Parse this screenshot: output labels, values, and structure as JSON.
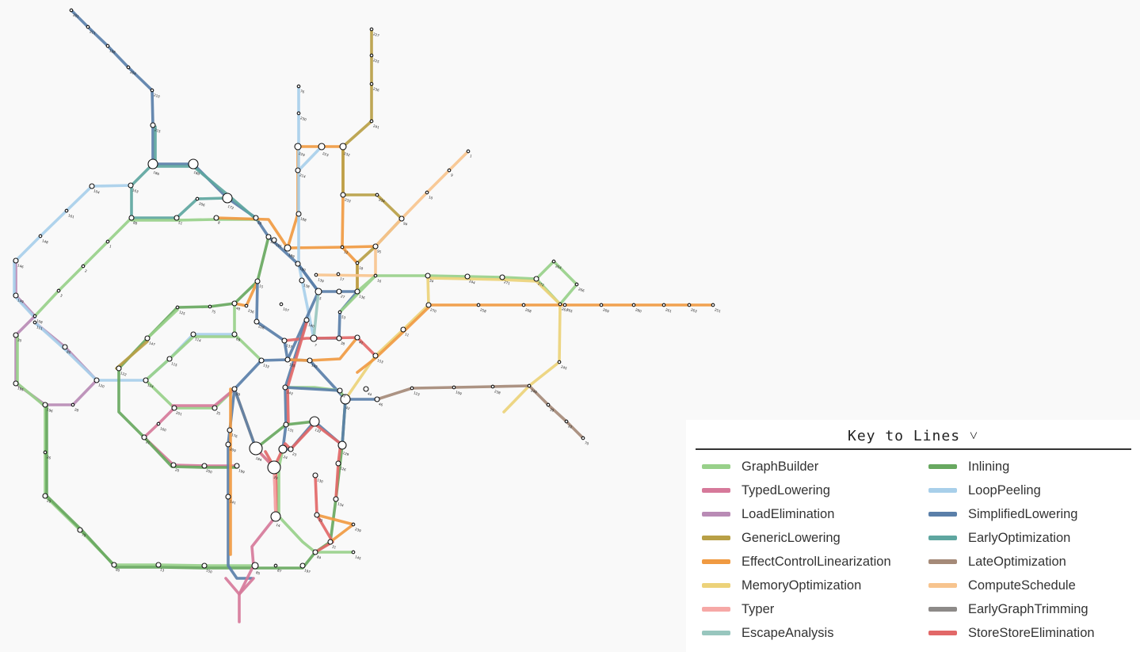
{
  "legend": {
    "title": "Key to Lines ˅",
    "lines": [
      {
        "name": "GraphBuilder",
        "color": "#98d08a"
      },
      {
        "name": "Inlining",
        "color": "#68a860"
      },
      {
        "name": "TypedLowering",
        "color": "#d6799a"
      },
      {
        "name": "LoopPeeling",
        "color": "#a8cfea"
      },
      {
        "name": "LoadElimination",
        "color": "#b98bb5"
      },
      {
        "name": "SimplifiedLowering",
        "color": "#5a7fa9"
      },
      {
        "name": "GenericLowering",
        "color": "#b8a046"
      },
      {
        "name": "EarlyOptimization",
        "color": "#5ea6a0"
      },
      {
        "name": "EffectControlLinearization",
        "color": "#f09a42"
      },
      {
        "name": "LateOptimization",
        "color": "#a58a78"
      },
      {
        "name": "MemoryOptimization",
        "color": "#ecd27a"
      },
      {
        "name": "ComputeSchedule",
        "color": "#f7c48e"
      },
      {
        "name": "Typer",
        "color": "#f6a8a6"
      },
      {
        "name": "EarlyGraphTrimming",
        "color": "#8d8a88"
      },
      {
        "name": "EscapeAnalysis",
        "color": "#98c6be"
      },
      {
        "name": "StoreStoreElimination",
        "color": "#e26868"
      }
    ]
  },
  "nodes": [
    {
      "id": "n1",
      "label": "201"
    },
    {
      "id": "n2",
      "label": "211"
    },
    {
      "id": "n3",
      "label": "198"
    },
    {
      "id": "n4",
      "label": "204"
    },
    {
      "id": "n5",
      "label": "210"
    },
    {
      "id": "n6",
      "label": "215"
    },
    {
      "id": "n7",
      "label": "186"
    },
    {
      "id": "n8",
      "label": "180"
    },
    {
      "id": "n9",
      "label": "172"
    },
    {
      "id": "n10",
      "label": "163"
    },
    {
      "id": "n11",
      "label": "206"
    },
    {
      "id": "n12",
      "label": "104"
    },
    {
      "id": "n13",
      "label": "88"
    },
    {
      "id": "n14",
      "label": "51"
    },
    {
      "id": "n15",
      "label": "8"
    },
    {
      "id": "n16",
      "label": "50"
    },
    {
      "id": "n17",
      "label": "161"
    },
    {
      "id": "n18",
      "label": "148"
    },
    {
      "id": "n19",
      "label": "146"
    },
    {
      "id": "n20",
      "label": "1"
    },
    {
      "id": "n21",
      "label": "2"
    },
    {
      "id": "n22",
      "label": "3"
    },
    {
      "id": "n23",
      "label": "149"
    },
    {
      "id": "n24",
      "label": "108"
    },
    {
      "id": "n25",
      "label": "111"
    },
    {
      "id": "n26",
      "label": "30"
    },
    {
      "id": "n27",
      "label": "195"
    },
    {
      "id": "n28",
      "label": "196"
    },
    {
      "id": "n29",
      "label": "86"
    },
    {
      "id": "n30",
      "label": "120"
    },
    {
      "id": "n31",
      "label": "28"
    },
    {
      "id": "n32",
      "label": "26"
    },
    {
      "id": "n33",
      "label": "29"
    },
    {
      "id": "n34",
      "label": "79"
    },
    {
      "id": "n35",
      "label": "80"
    },
    {
      "id": "n36",
      "label": "13"
    },
    {
      "id": "n37",
      "label": "150"
    },
    {
      "id": "n38",
      "label": "85"
    },
    {
      "id": "n39",
      "label": "87"
    },
    {
      "id": "n40",
      "label": "197"
    },
    {
      "id": "n41",
      "label": "84"
    },
    {
      "id": "n42",
      "label": "31"
    },
    {
      "id": "n43",
      "label": "122"
    },
    {
      "id": "n44",
      "label": "124"
    },
    {
      "id": "n45",
      "label": "115"
    },
    {
      "id": "n46",
      "label": "114"
    },
    {
      "id": "n47",
      "label": "147"
    },
    {
      "id": "n48",
      "label": "125"
    },
    {
      "id": "n49",
      "label": "75"
    },
    {
      "id": "n50",
      "label": "48"
    },
    {
      "id": "n51",
      "label": "69"
    },
    {
      "id": "n52",
      "label": "15"
    },
    {
      "id": "n53",
      "label": "236"
    },
    {
      "id": "n54",
      "label": "107"
    },
    {
      "id": "n55",
      "label": "226"
    },
    {
      "id": "n56",
      "label": "181"
    },
    {
      "id": "n57",
      "label": "191"
    },
    {
      "id": "n58",
      "label": "189"
    },
    {
      "id": "n59",
      "label": "190"
    },
    {
      "id": "n60",
      "label": "188"
    },
    {
      "id": "n61",
      "label": "76"
    },
    {
      "id": "n62",
      "label": "230"
    },
    {
      "id": "n63",
      "label": "229"
    },
    {
      "id": "n64",
      "label": "223"
    },
    {
      "id": "n65",
      "label": "232"
    },
    {
      "id": "n66",
      "label": "227"
    },
    {
      "id": "n67",
      "label": "225"
    },
    {
      "id": "n68",
      "label": "236"
    },
    {
      "id": "n69",
      "label": "241"
    },
    {
      "id": "n70",
      "label": "214"
    },
    {
      "id": "n71",
      "label": "233"
    },
    {
      "id": "n72",
      "label": "234"
    },
    {
      "id": "n73",
      "label": "94"
    },
    {
      "id": "n74",
      "label": "95"
    },
    {
      "id": "n75",
      "label": "1"
    },
    {
      "id": "n76",
      "label": "9"
    },
    {
      "id": "n77",
      "label": "10"
    },
    {
      "id": "n78",
      "label": "12"
    },
    {
      "id": "n79",
      "label": "18"
    },
    {
      "id": "n80",
      "label": "17"
    },
    {
      "id": "n81",
      "label": "16"
    },
    {
      "id": "n82",
      "label": "34"
    },
    {
      "id": "n83",
      "label": "244"
    },
    {
      "id": "n84",
      "label": "271"
    },
    {
      "id": "n85",
      "label": "272"
    },
    {
      "id": "n86",
      "label": "264"
    },
    {
      "id": "n87",
      "label": "266"
    },
    {
      "id": "n88",
      "label": "267"
    },
    {
      "id": "n89",
      "label": "270"
    },
    {
      "id": "n90",
      "label": "258"
    },
    {
      "id": "n91",
      "label": "268"
    },
    {
      "id": "n92",
      "label": "265"
    },
    {
      "id": "n93",
      "label": "269"
    },
    {
      "id": "n94",
      "label": "280"
    },
    {
      "id": "n95",
      "label": "261"
    },
    {
      "id": "n96",
      "label": "263"
    },
    {
      "id": "n97",
      "label": "251"
    },
    {
      "id": "n98",
      "label": "245"
    },
    {
      "id": "n99",
      "label": "249"
    },
    {
      "id": "n100",
      "label": "39"
    },
    {
      "id": "n101",
      "label": "22"
    },
    {
      "id": "n102",
      "label": "70"
    },
    {
      "id": "n103",
      "label": "238"
    },
    {
      "id": "n104",
      "label": "109"
    },
    {
      "id": "n105",
      "label": "123"
    },
    {
      "id": "n106",
      "label": "46"
    },
    {
      "id": "n107",
      "label": "44"
    },
    {
      "id": "n108",
      "label": "42"
    },
    {
      "id": "n109",
      "label": "32"
    },
    {
      "id": "n110",
      "label": "11"
    },
    {
      "id": "n111",
      "label": "153"
    },
    {
      "id": "n112",
      "label": "7"
    },
    {
      "id": "n113",
      "label": "38"
    },
    {
      "id": "n114",
      "label": "41"
    },
    {
      "id": "n115",
      "label": "53"
    },
    {
      "id": "n116",
      "label": "5"
    },
    {
      "id": "n117",
      "label": "27"
    },
    {
      "id": "n118",
      "label": "136"
    },
    {
      "id": "n119",
      "label": "138"
    },
    {
      "id": "n120",
      "label": "139"
    },
    {
      "id": "n121",
      "label": "137"
    },
    {
      "id": "n122",
      "label": "140"
    },
    {
      "id": "n123",
      "label": "135"
    },
    {
      "id": "n124",
      "label": "142"
    },
    {
      "id": "n125",
      "label": "133"
    },
    {
      "id": "n126",
      "label": "99"
    },
    {
      "id": "n127",
      "label": "143"
    },
    {
      "id": "n128",
      "label": "131"
    },
    {
      "id": "n129",
      "label": "132"
    },
    {
      "id": "n130",
      "label": "184"
    },
    {
      "id": "n131",
      "label": "24"
    },
    {
      "id": "n132",
      "label": "25"
    },
    {
      "id": "n133",
      "label": "23"
    },
    {
      "id": "n134",
      "label": "129"
    },
    {
      "id": "n135",
      "label": "126"
    },
    {
      "id": "n136",
      "label": "130"
    },
    {
      "id": "n137",
      "label": "33"
    },
    {
      "id": "n138",
      "label": "14"
    },
    {
      "id": "n139",
      "label": "239"
    },
    {
      "id": "n140",
      "label": "145"
    },
    {
      "id": "n141",
      "label": "134"
    },
    {
      "id": "n142",
      "label": "176"
    },
    {
      "id": "n143",
      "label": "209"
    },
    {
      "id": "n144",
      "label": "141"
    },
    {
      "id": "n145",
      "label": "199"
    },
    {
      "id": "n146",
      "label": "200"
    },
    {
      "id": "n147",
      "label": "20"
    },
    {
      "id": "n148",
      "label": "21"
    },
    {
      "id": "n149",
      "label": "160"
    },
    {
      "id": "n150",
      "label": "201"
    },
    {
      "id": "n151",
      "label": "35"
    }
  ]
}
